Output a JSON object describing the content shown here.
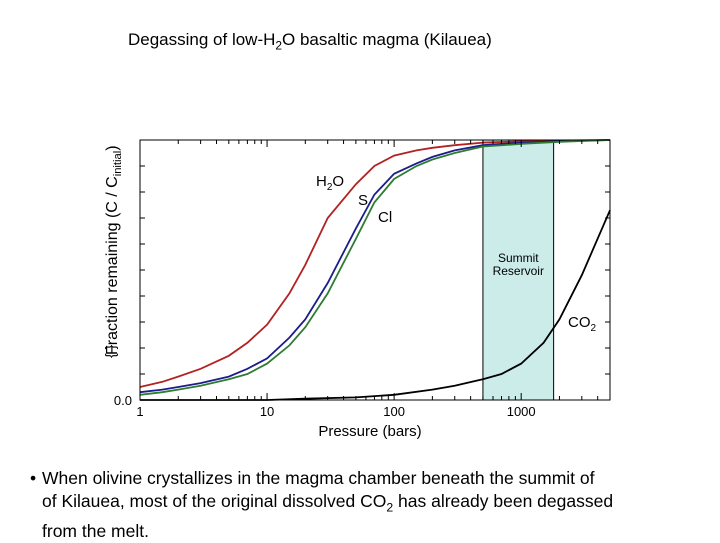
{
  "slide": {
    "title_pre": "Degassing of low-H",
    "title_sub": "2",
    "title_post": "O basaltic magma (Kilauea)",
    "bullet_glyph": "•",
    "bullet_line1": "When olivine crystallizes in the magma chamber beneath the summit of",
    "bullet_line2_pre": "of Kilauea, most of the original dissolved CO",
    "bullet_line2_sub": "2",
    "bullet_line2_post": " has already been degassed",
    "bullet_line3": "from the melt."
  },
  "chart_data": {
    "type": "line",
    "title": "Degassing of low-H2O basaltic magma (Kilauea)",
    "xlabel": "Pressure (bars)",
    "ylabel_pre": "Fraction remaining (C / C",
    "ylabel_sub": "initial",
    "ylabel_post": ")",
    "ylabel_fragment": "{ }",
    "xscale": "log",
    "xlim": [
      1,
      5000
    ],
    "ylim": [
      0,
      1
    ],
    "x_ticks": [
      1,
      10,
      100,
      1000
    ],
    "x_tick_labels": [
      "1",
      "10",
      "100",
      "1000"
    ],
    "y_tick_labels": [
      "0.0"
    ],
    "shaded_region": {
      "label_line1": "Summit",
      "label_line2": "Reservoir",
      "x_range": [
        500,
        1800
      ],
      "color": "#ccecea"
    },
    "series": [
      {
        "name": "H2O",
        "label_main": "H",
        "label_sub": "2",
        "label_tail": "O",
        "color": "#b22222",
        "x": [
          1,
          1.5,
          2,
          3,
          5,
          7,
          10,
          15,
          20,
          30,
          50,
          70,
          100,
          150,
          200,
          300,
          500,
          1000,
          2000,
          5000
        ],
        "y": [
          0.05,
          0.07,
          0.09,
          0.12,
          0.17,
          0.22,
          0.29,
          0.41,
          0.52,
          0.7,
          0.83,
          0.9,
          0.94,
          0.96,
          0.97,
          0.98,
          0.99,
          0.995,
          0.998,
          1.0
        ]
      },
      {
        "name": "S",
        "label_main": "S",
        "label_sub": "",
        "label_tail": "",
        "color": "#1c1c8c",
        "x": [
          1,
          1.5,
          2,
          3,
          5,
          7,
          10,
          15,
          20,
          30,
          50,
          70,
          100,
          150,
          200,
          300,
          500,
          1000,
          2000,
          5000
        ],
        "y": [
          0.03,
          0.04,
          0.05,
          0.065,
          0.09,
          0.12,
          0.16,
          0.24,
          0.31,
          0.45,
          0.66,
          0.79,
          0.87,
          0.91,
          0.935,
          0.96,
          0.98,
          0.99,
          0.995,
          1.0
        ]
      },
      {
        "name": "Cl",
        "label_main": "Cl",
        "label_sub": "",
        "label_tail": "",
        "color": "#2e7d32",
        "x": [
          1,
          1.5,
          2,
          3,
          5,
          7,
          10,
          15,
          20,
          30,
          50,
          70,
          100,
          150,
          200,
          300,
          500,
          1000,
          2000,
          5000
        ],
        "y": [
          0.02,
          0.03,
          0.04,
          0.055,
          0.08,
          0.1,
          0.14,
          0.21,
          0.28,
          0.41,
          0.62,
          0.76,
          0.85,
          0.9,
          0.925,
          0.95,
          0.975,
          0.985,
          0.993,
          1.0
        ]
      },
      {
        "name": "CO2",
        "label_main": "CO",
        "label_sub": "2",
        "label_tail": "",
        "color": "#000000",
        "x": [
          1,
          10,
          20,
          50,
          100,
          200,
          300,
          500,
          700,
          1000,
          1500,
          2000,
          3000,
          5000
        ],
        "y": [
          0.0,
          0.0,
          0.005,
          0.01,
          0.02,
          0.04,
          0.055,
          0.08,
          0.1,
          0.14,
          0.22,
          0.31,
          0.48,
          0.73
        ]
      }
    ]
  }
}
